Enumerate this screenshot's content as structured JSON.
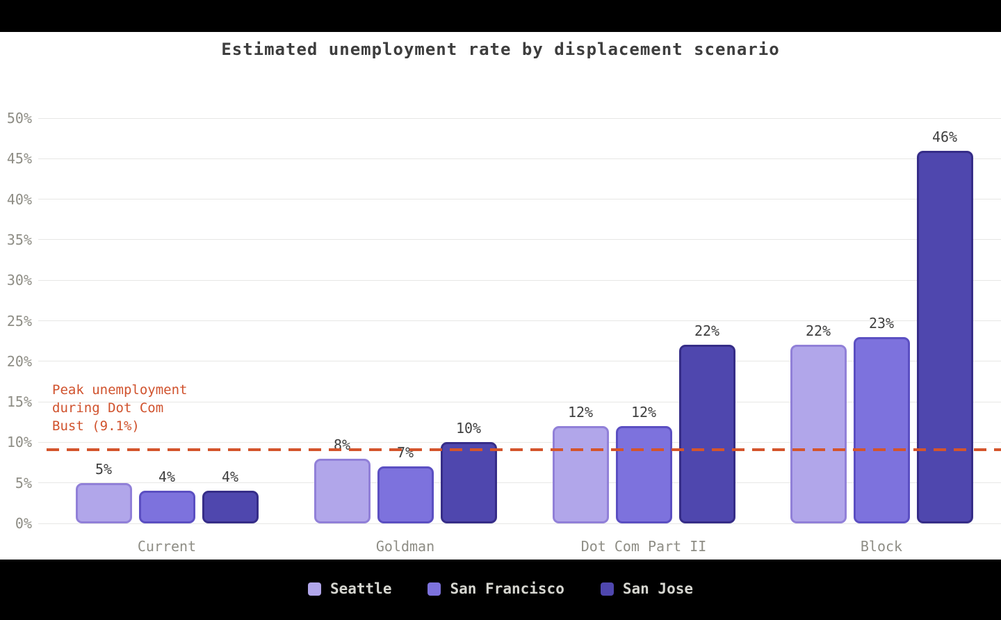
{
  "title": "Estimated unemployment rate by displacement scenario",
  "chart_data": {
    "type": "bar",
    "title": "Estimated unemployment rate by displacement scenario",
    "categories": [
      "Current",
      "Goldman",
      "Dot Com Part II",
      "Block"
    ],
    "series": [
      {
        "name": "Seattle",
        "values": [
          5,
          8,
          12,
          22
        ],
        "fill": "#b1a6ea",
        "border": "#9180d8"
      },
      {
        "name": "San Francisco",
        "values": [
          4,
          7,
          12,
          23
        ],
        "fill": "#7d72dd",
        "border": "#5b4fc2"
      },
      {
        "name": "San Jose",
        "values": [
          4,
          10,
          22,
          46
        ],
        "fill": "#4f47ae",
        "border": "#362d88"
      }
    ],
    "value_suffix": "%",
    "ylim": [
      0,
      50
    ],
    "ytick_step": 5,
    "ytick_labels": [
      "0%",
      "5%",
      "10%",
      "15%",
      "20%",
      "25%",
      "30%",
      "35%",
      "40%",
      "45%",
      "50%"
    ],
    "grid": true,
    "legend_position": "bottom",
    "reference_line": {
      "value": 9.1,
      "label": "Peak unemployment\nduring Dot Com\nBust (9.1%)",
      "color": "#d4552c",
      "style": "dashed"
    }
  },
  "colors": {
    "page_background": "#000000",
    "chart_background": "#ffffff",
    "title_text": "#3d3d3d",
    "axis_text": "#8e8d85",
    "value_label_text": "#3f3f3f",
    "gridline": "#e7e7e5",
    "reference_line": "#d4552c",
    "annotation_text": "#d0522d",
    "legend_text": "#d6d6d0"
  }
}
